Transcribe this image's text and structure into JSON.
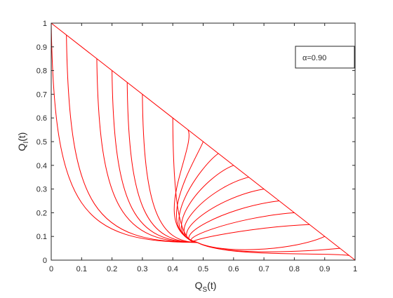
{
  "chart_data": {
    "type": "line",
    "title": "",
    "xlabel": {
      "main": "Q",
      "sub": "S",
      "suffix": "(t)"
    },
    "ylabel": {
      "main": "Q",
      "sub": "I",
      "suffix": "(t)"
    },
    "xlim": [
      0,
      1
    ],
    "ylim": [
      0,
      1
    ],
    "xticks": [
      "0",
      "0.1",
      "0.2",
      "0.3",
      "0.4",
      "0.5",
      "0.6",
      "0.7",
      "0.8",
      "0.9",
      "1"
    ],
    "yticks": [
      "0",
      "0.1",
      "0.2",
      "0.3",
      "0.4",
      "0.5",
      "0.6",
      "0.7",
      "0.8",
      "0.9",
      "1"
    ],
    "grid": false,
    "line_color": "#ff0000",
    "legend": {
      "symbol": "α",
      "text": "=0.90",
      "placement": "top-right"
    },
    "boundary_line": {
      "x": [
        0,
        1
      ],
      "y": [
        1,
        0
      ]
    },
    "equilibrium": {
      "x": 0.48,
      "y": 0.075
    },
    "trajectory_starts_S": [
      0,
      0.05,
      0.15,
      0.2,
      0.25,
      0.3,
      0.4,
      0.45,
      0.5,
      0.55,
      0.6,
      0.65,
      0.7,
      0.75,
      0.8,
      0.85,
      0.9,
      0.95,
      0.98
    ]
  }
}
